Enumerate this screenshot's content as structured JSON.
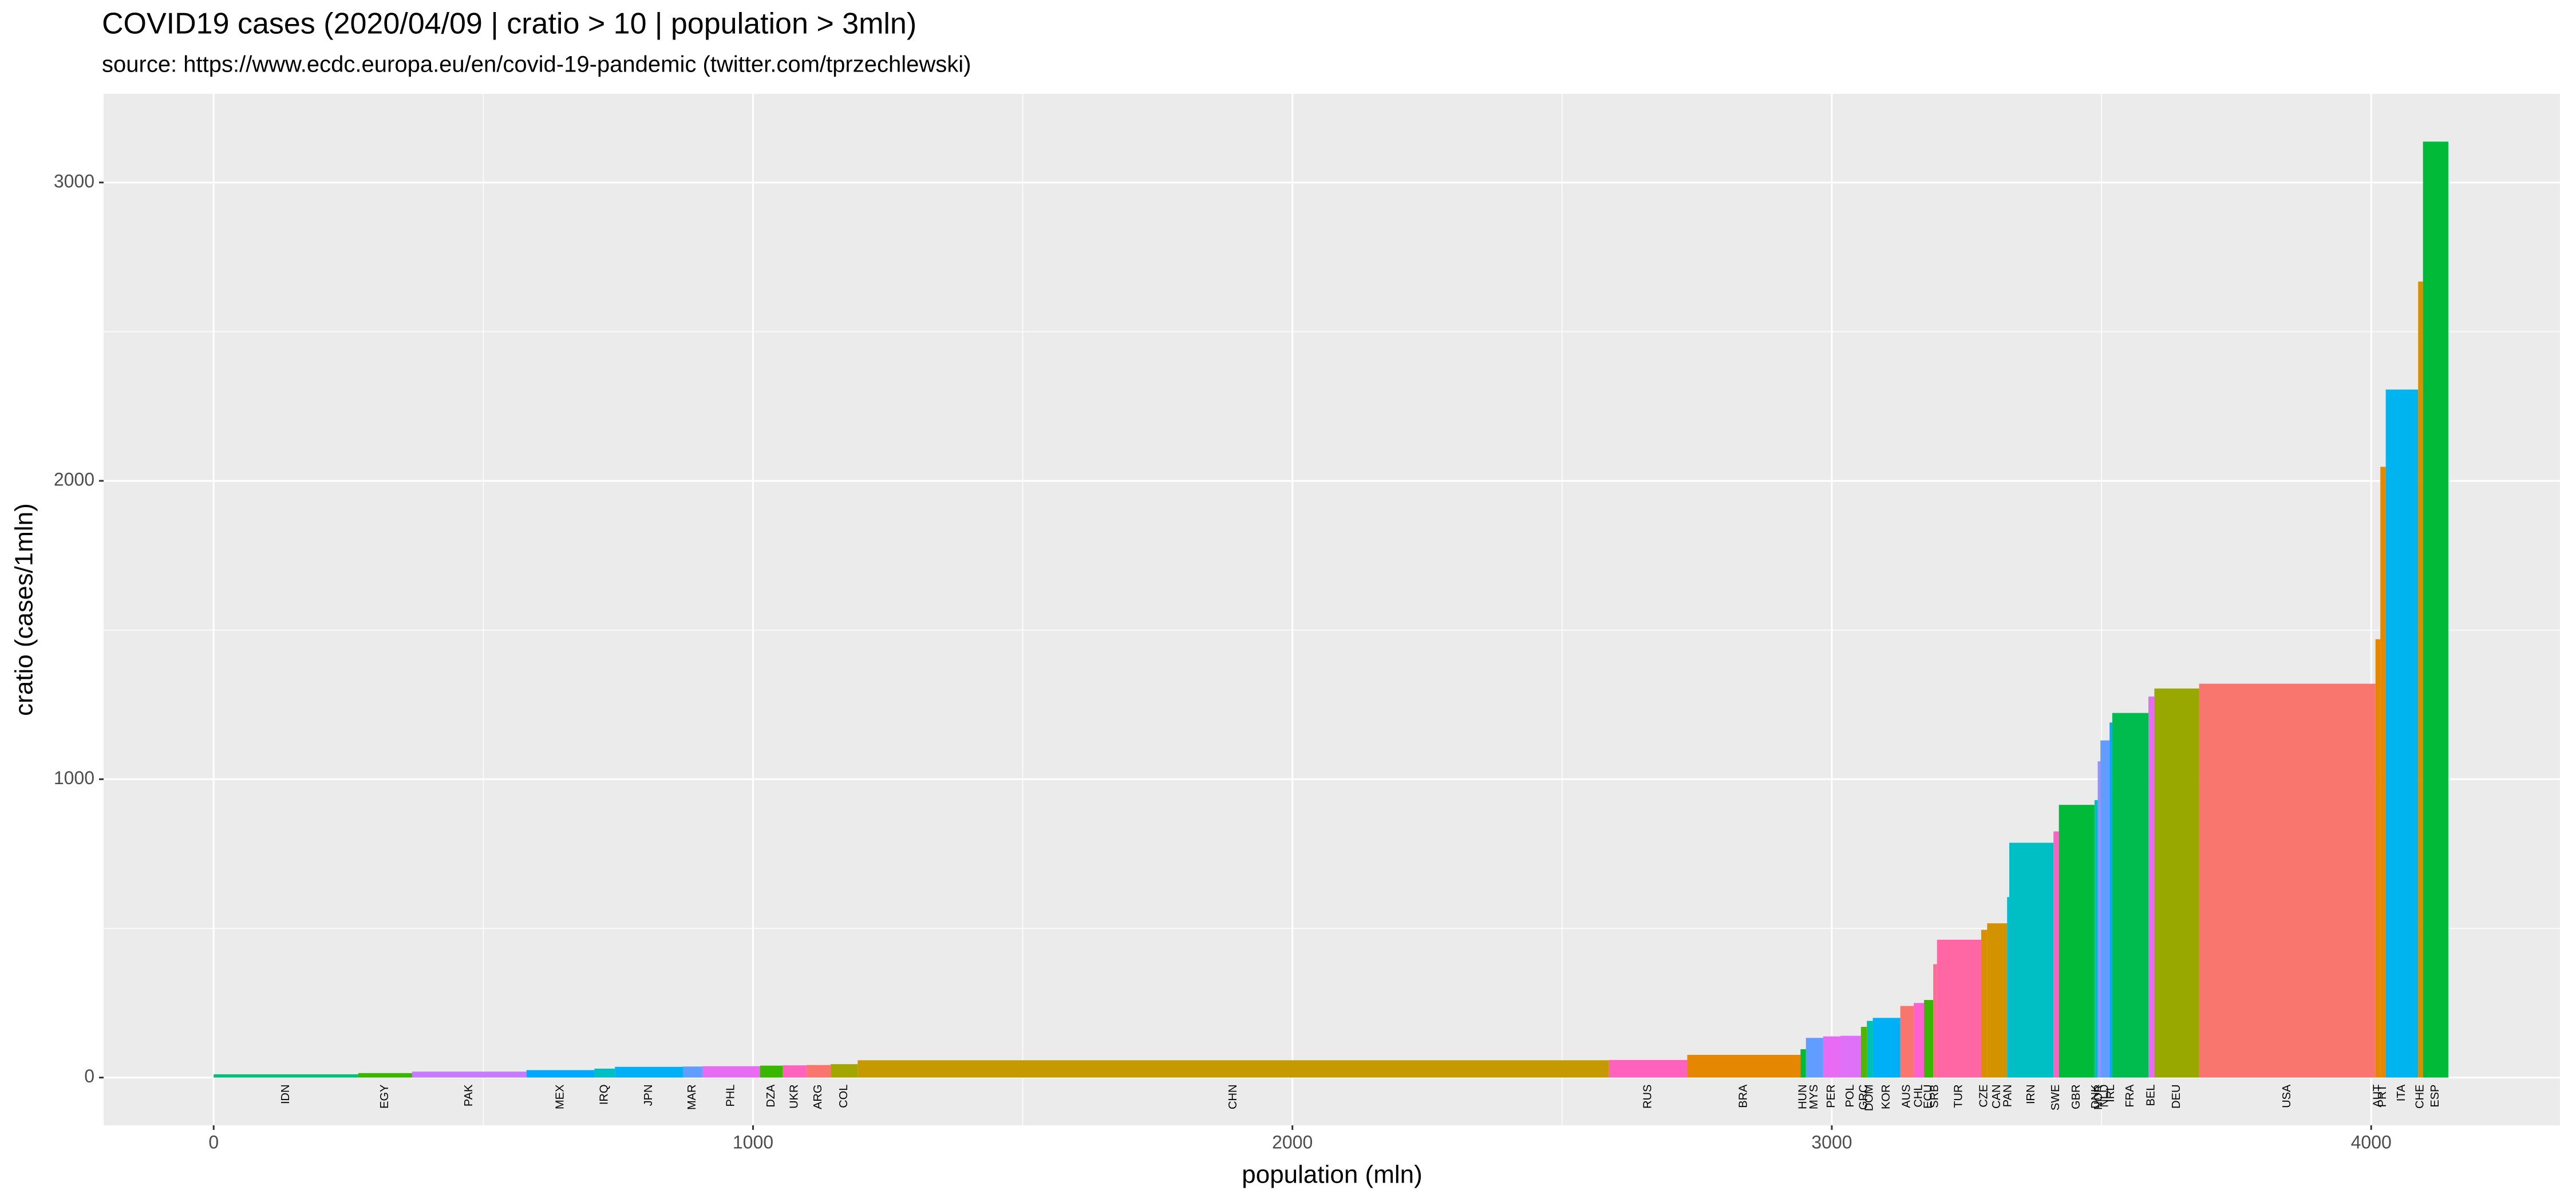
{
  "chart_data": {
    "type": "mekko",
    "title": "COVID19 cases (2020/04/09 | cratio > 10 | population > 3mln)",
    "subtitle": "source: https://www.ecdc.europa.eu/en/covid-19-pandemic (twitter.com/tprzechlewski)",
    "x_label": "population (mln)",
    "y_label": "cratio (cases/1mln)",
    "categories": [
      "IDN",
      "EGY",
      "PAK",
      "MEX",
      "IRQ",
      "JPN",
      "MAR",
      "PHL",
      "DZA",
      "UKR",
      "ARG",
      "COL",
      "CHN",
      "RUS",
      "BRA",
      "HUN",
      "MYS",
      "PER",
      "POL",
      "GRC",
      "DOM",
      "KOR",
      "AUS",
      "CHL",
      "ECU",
      "SRB",
      "TUR",
      "CZE",
      "CAN",
      "PAN",
      "IRN",
      "SWE",
      "GBR",
      "DNK",
      "NOR",
      "NLD",
      "IRL",
      "FRA",
      "BEL",
      "DEU",
      "USA",
      "AUT",
      "PRT",
      "ITA",
      "CHE",
      "ESP"
    ],
    "population": [
      268,
      100,
      212,
      126,
      38,
      126,
      36,
      107,
      42,
      44,
      45,
      50,
      1393,
      145,
      210,
      10,
      32,
      32,
      38,
      11,
      11,
      51,
      25,
      19,
      17,
      7,
      82,
      11,
      37,
      4,
      82,
      10,
      66,
      6,
      5,
      17,
      5,
      67,
      11,
      83,
      327,
      9,
      10,
      60,
      9,
      47
    ],
    "values": [
      11,
      15,
      20,
      25,
      30,
      36,
      37,
      38,
      40,
      41,
      42,
      45,
      58,
      59,
      76,
      95,
      133,
      138,
      140,
      170,
      190,
      200,
      240,
      250,
      260,
      380,
      462,
      495,
      517,
      605,
      787,
      825,
      914,
      930,
      1060,
      1130,
      1190,
      1222,
      1277,
      1304,
      1320,
      1469,
      2047,
      2306,
      2668,
      3137
    ],
    "colors": [
      "#00BF7D",
      "#39B600",
      "#C77CFF",
      "#00A9FF",
      "#00BFC4",
      "#00B0F6",
      "#619CFF",
      "#E76BF3",
      "#39B600",
      "#FF62BC",
      "#F8766D",
      "#A3A500",
      "#C49A00",
      "#FF62BC",
      "#E58700",
      "#00BA38",
      "#619CFF",
      "#E76BF3",
      "#DF70F8",
      "#53B400",
      "#00C0AF",
      "#00B0F6",
      "#F8766D",
      "#FD61D1",
      "#39B600",
      "#FF6C91",
      "#FF67A4",
      "#D89000",
      "#D39200",
      "#00BCD8",
      "#00BFC4",
      "#FF61C3",
      "#00BA38",
      "#00BFC4",
      "#9590FF",
      "#619CFF",
      "#00A9FF",
      "#00BB4E",
      "#E76BF3",
      "#99A800",
      "#F8766D",
      "#E58700",
      "#E58700",
      "#00B4F0",
      "#D89000",
      "#00BA38"
    ],
    "xlim": [
      -204,
      4350
    ],
    "ylim": [
      -160,
      3297
    ],
    "xticks": [
      0,
      1000,
      2000,
      3000,
      4000
    ],
    "yticks": [
      0,
      1000,
      2000,
      3000
    ],
    "grid": true
  }
}
